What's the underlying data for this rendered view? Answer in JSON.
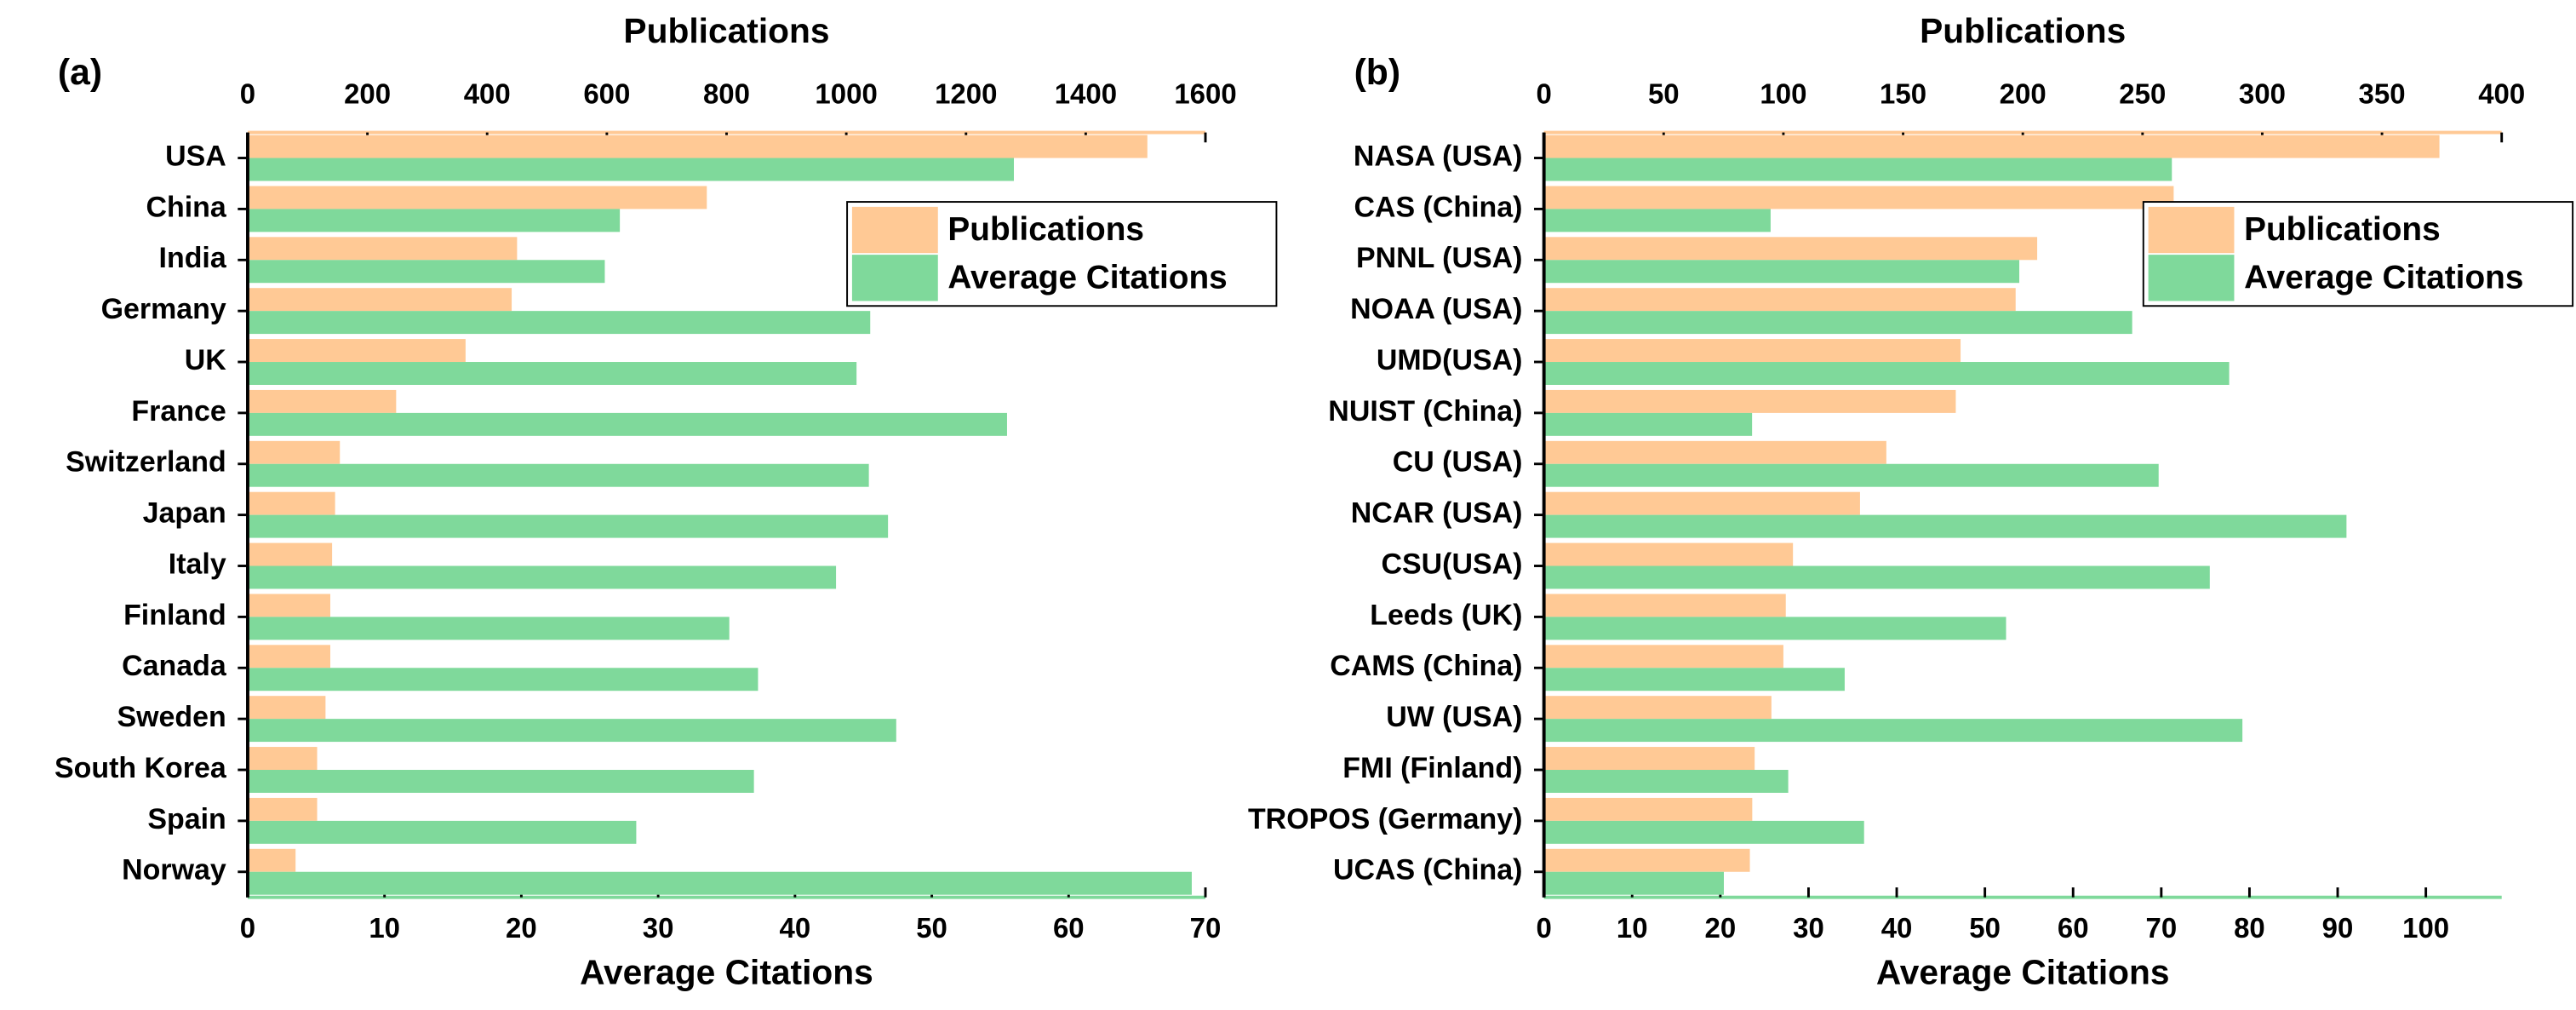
{
  "chart_data": [
    {
      "type": "bar",
      "orientation": "horizontal",
      "panel_label": "(a)",
      "xlabel_top": "Publications",
      "xlabel": "Average Citations",
      "categories": [
        "USA",
        "China",
        "India",
        "Germany",
        "UK",
        "France",
        "Switzerland",
        "Japan",
        "Italy",
        "Finland",
        "Canada",
        "Sweden",
        "South Korea",
        "Spain",
        "Norway"
      ],
      "series": [
        {
          "name": "Publications",
          "color": "#ffc995",
          "axis": "x2",
          "values": [
            1503,
            767,
            450,
            441,
            364,
            248,
            154,
            146,
            141,
            138,
            138,
            130,
            116,
            116,
            80
          ]
        },
        {
          "name": "Average Citations",
          "color": "#7fd99b",
          "axis": "x",
          "values": [
            56.0,
            27.2,
            26.1,
            45.5,
            44.5,
            55.5,
            45.4,
            46.8,
            43.0,
            35.2,
            37.3,
            47.4,
            37.0,
            28.4,
            69.0
          ]
        }
      ],
      "x2lim": [
        0,
        1600
      ],
      "x2ticks": [
        0,
        200,
        400,
        600,
        800,
        1000,
        1200,
        1400,
        1600
      ],
      "xlim": [
        0,
        70
      ],
      "xticks": [
        0,
        10,
        20,
        30,
        40,
        50,
        60,
        70
      ],
      "legend": "upper right"
    },
    {
      "type": "bar",
      "orientation": "horizontal",
      "panel_label": "(b)",
      "xlabel_top": "Publications",
      "xlabel": "Average Citations",
      "categories": [
        "NASA (USA)",
        "CAS (China)",
        "PNNL (USA)",
        "NOAA  (USA)",
        "UMD(USA)",
        "NUIST (China)",
        "CU (USA)",
        "NCAR (USA)",
        "CSU(USA)",
        "Leeds (UK)",
        "CAMS (China)",
        "UW (USA)",
        "FMI (Finland)",
        "TROPOS (Germany)",
        "UCAS (China)"
      ],
      "series": [
        {
          "name": "Publications",
          "color": "#ffc995",
          "axis": "x2",
          "values": [
            374,
            263,
            206,
            197,
            174,
            172,
            143,
            132,
            104,
            101,
            100,
            95,
            88,
            87,
            86
          ]
        },
        {
          "name": "Average Citations",
          "color": "#7fd99b",
          "axis": "x",
          "values": [
            71.2,
            25.7,
            53.9,
            66.7,
            77.7,
            23.6,
            69.7,
            91.0,
            75.5,
            52.4,
            34.1,
            79.2,
            27.7,
            36.3,
            20.4
          ]
        }
      ],
      "x2lim": [
        0,
        400
      ],
      "x2ticks": [
        0,
        50,
        100,
        150,
        200,
        250,
        300,
        350,
        400
      ],
      "xlim": [
        0,
        108.6
      ],
      "xticks": [
        0,
        10,
        20,
        30,
        40,
        50,
        60,
        70,
        80,
        90,
        100
      ],
      "legend": "upper right"
    }
  ]
}
